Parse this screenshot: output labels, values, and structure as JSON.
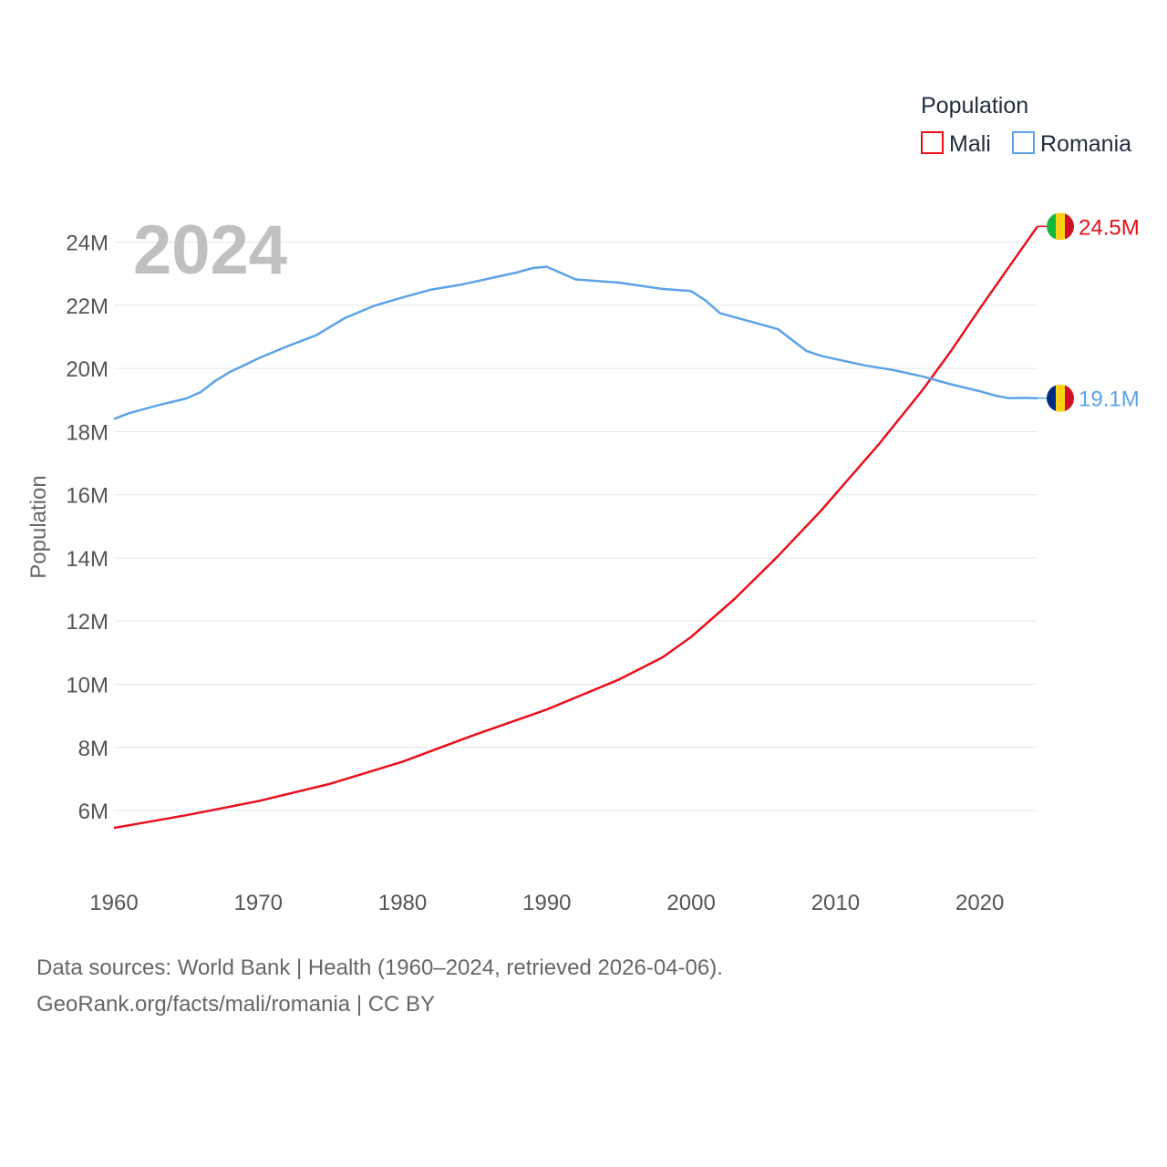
{
  "chart_data": {
    "type": "line",
    "year_label": "2024",
    "ylabel": "Population",
    "xlabel": "",
    "legend_title": "Population",
    "legend_position": "top-right",
    "xlim": [
      1960,
      2024
    ],
    "ylim": [
      4500000,
      25000000
    ],
    "x_ticks": [
      1960,
      1970,
      1980,
      1990,
      2000,
      2010,
      2020
    ],
    "y_ticks": [
      {
        "value": 6000000,
        "label": "6M"
      },
      {
        "value": 8000000,
        "label": "8M"
      },
      {
        "value": 10000000,
        "label": "10M"
      },
      {
        "value": 12000000,
        "label": "12M"
      },
      {
        "value": 14000000,
        "label": "14M"
      },
      {
        "value": 16000000,
        "label": "16M"
      },
      {
        "value": 18000000,
        "label": "18M"
      },
      {
        "value": 20000000,
        "label": "20M"
      },
      {
        "value": 22000000,
        "label": "22M"
      },
      {
        "value": 24000000,
        "label": "24M"
      }
    ],
    "series": [
      {
        "name": "Mali",
        "color": "#e8101c",
        "end_label": "24.5M",
        "flag": "mali-flag",
        "flag_colors": [
          "#14b53a",
          "#fcd116",
          "#ce1126"
        ],
        "points": [
          [
            1960,
            5450000
          ],
          [
            1965,
            5850000
          ],
          [
            1970,
            6300000
          ],
          [
            1975,
            6850000
          ],
          [
            1980,
            7550000
          ],
          [
            1985,
            8400000
          ],
          [
            1990,
            9200000
          ],
          [
            1995,
            10150000
          ],
          [
            1998,
            10850000
          ],
          [
            2000,
            11500000
          ],
          [
            2003,
            12700000
          ],
          [
            2006,
            14050000
          ],
          [
            2009,
            15500000
          ],
          [
            2011,
            16550000
          ],
          [
            2013,
            17600000
          ],
          [
            2016,
            19300000
          ],
          [
            2018,
            20550000
          ],
          [
            2020,
            21900000
          ],
          [
            2022,
            23200000
          ],
          [
            2024,
            24500000
          ]
        ]
      },
      {
        "name": "Romania",
        "color": "#5ba3e6",
        "end_label": "19.1M",
        "flag": "romania-flag",
        "flag_colors": [
          "#002b7f",
          "#fcd116",
          "#ce1126"
        ],
        "points": [
          [
            1960,
            18400000
          ],
          [
            1961,
            18580000
          ],
          [
            1963,
            18830000
          ],
          [
            1965,
            19050000
          ],
          [
            1966,
            19250000
          ],
          [
            1967,
            19600000
          ],
          [
            1968,
            19880000
          ],
          [
            1969,
            20100000
          ],
          [
            1970,
            20320000
          ],
          [
            1972,
            20700000
          ],
          [
            1974,
            21050000
          ],
          [
            1976,
            21600000
          ],
          [
            1978,
            21980000
          ],
          [
            1980,
            22250000
          ],
          [
            1982,
            22500000
          ],
          [
            1984,
            22650000
          ],
          [
            1986,
            22850000
          ],
          [
            1988,
            23050000
          ],
          [
            1989,
            23180000
          ],
          [
            1990,
            23220000
          ],
          [
            1992,
            22820000
          ],
          [
            1995,
            22720000
          ],
          [
            1998,
            22520000
          ],
          [
            2000,
            22450000
          ],
          [
            2001,
            22150000
          ],
          [
            2002,
            21750000
          ],
          [
            2004,
            21500000
          ],
          [
            2006,
            21250000
          ],
          [
            2007,
            20900000
          ],
          [
            2008,
            20550000
          ],
          [
            2009,
            20400000
          ],
          [
            2010,
            20300000
          ],
          [
            2012,
            20100000
          ],
          [
            2014,
            19950000
          ],
          [
            2016,
            19750000
          ],
          [
            2018,
            19500000
          ],
          [
            2020,
            19280000
          ],
          [
            2021,
            19150000
          ],
          [
            2022,
            19060000
          ],
          [
            2023,
            19070000
          ],
          [
            2024,
            19060000
          ]
        ]
      }
    ]
  },
  "footer": {
    "source_line": "Data sources: World Bank | Health (1960–2024, retrieved 2026-04-06).",
    "attribution_line": "GeoRank.org/facts/mali/romania | CC BY"
  }
}
